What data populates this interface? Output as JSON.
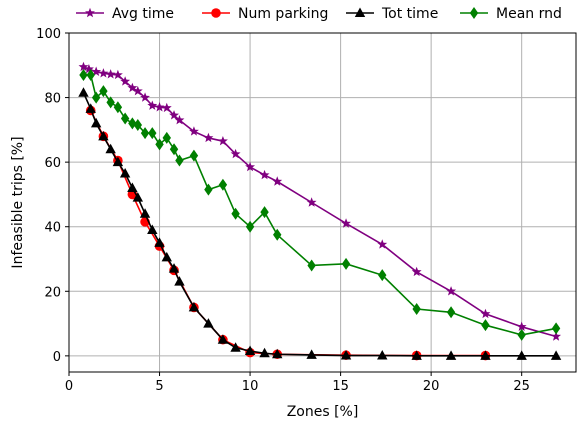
{
  "chart_data": {
    "type": "line",
    "xlabel": "Zones [%]",
    "ylabel": "Infeasible trips [%]",
    "xlim": [
      0,
      28
    ],
    "ylim": [
      -5,
      100
    ],
    "xticks": [
      0,
      5,
      10,
      15,
      20,
      25
    ],
    "yticks": [
      0,
      20,
      40,
      60,
      80,
      100
    ],
    "grid": true,
    "legend_position": "top",
    "series": [
      {
        "name": "Avg time",
        "color": "#800080",
        "marker": "star",
        "x": [
          0.8,
          1.1,
          1.5,
          1.9,
          2.3,
          2.7,
          3.1,
          3.5,
          3.8,
          4.2,
          4.6,
          5.0,
          5.4,
          5.8,
          6.1,
          6.9,
          7.7,
          8.5,
          9.2,
          10.0,
          10.8,
          11.5,
          13.4,
          15.3,
          17.3,
          19.2,
          21.1,
          23.0,
          25.0,
          26.9
        ],
        "y": [
          89.5,
          88.8,
          88.0,
          87.5,
          87.2,
          87.0,
          85.0,
          83.0,
          82.0,
          80.0,
          77.5,
          77.0,
          76.8,
          74.5,
          73.0,
          69.5,
          67.5,
          66.5,
          62.5,
          58.5,
          56.0,
          54.0,
          47.5,
          41.0,
          34.5,
          26.0,
          20.0,
          13.0,
          9.0,
          6.0
        ]
      },
      {
        "name": "Num parking",
        "color": "#ff0000",
        "marker": "circle",
        "x": [
          1.2,
          1.9,
          2.7,
          3.5,
          4.2,
          5.0,
          5.8,
          6.9,
          8.5,
          10.0,
          11.5,
          15.3,
          19.2,
          23.0
        ],
        "y": [
          76.0,
          68.0,
          60.5,
          50.0,
          41.5,
          34.0,
          26.5,
          15.0,
          5.0,
          1.0,
          0.5,
          0.2,
          0.1,
          0.1
        ]
      },
      {
        "name": "Tot time",
        "color": "#000000",
        "marker": "triangle",
        "x": [
          0.8,
          1.2,
          1.5,
          1.9,
          2.3,
          2.7,
          3.1,
          3.5,
          3.8,
          4.2,
          4.6,
          5.0,
          5.4,
          5.8,
          6.1,
          6.9,
          7.7,
          8.5,
          9.2,
          10.0,
          10.8,
          11.5,
          13.4,
          15.3,
          17.3,
          19.2,
          21.1,
          23.0,
          25.0,
          26.9
        ],
        "y": [
          81.5,
          76.5,
          72.0,
          68.0,
          64.0,
          60.0,
          56.5,
          52.0,
          49.0,
          44.0,
          39.0,
          35.0,
          30.5,
          27.0,
          23.0,
          15.0,
          10.0,
          5.0,
          2.5,
          1.5,
          0.8,
          0.5,
          0.3,
          0.1,
          0.1,
          0.0,
          0.0,
          0.0,
          0.0,
          0.0
        ]
      },
      {
        "name": "Mean rnd",
        "color": "#008000",
        "marker": "diamond",
        "x": [
          0.8,
          1.2,
          1.5,
          1.9,
          2.3,
          2.7,
          3.1,
          3.5,
          3.8,
          4.2,
          4.6,
          5.0,
          5.4,
          5.8,
          6.1,
          6.9,
          7.7,
          8.5,
          9.2,
          10.0,
          10.8,
          11.5,
          13.4,
          15.3,
          17.3,
          19.2,
          21.1,
          23.0,
          25.0,
          26.9
        ],
        "y": [
          87.0,
          87.0,
          80.0,
          82.0,
          78.5,
          77.0,
          73.5,
          72.0,
          71.5,
          69.0,
          69.0,
          65.5,
          67.5,
          64.0,
          60.5,
          62.0,
          51.5,
          53.0,
          44.0,
          40.0,
          44.5,
          37.5,
          28.0,
          28.5,
          25.0,
          14.5,
          13.5,
          9.5,
          6.5,
          8.5
        ]
      }
    ]
  }
}
